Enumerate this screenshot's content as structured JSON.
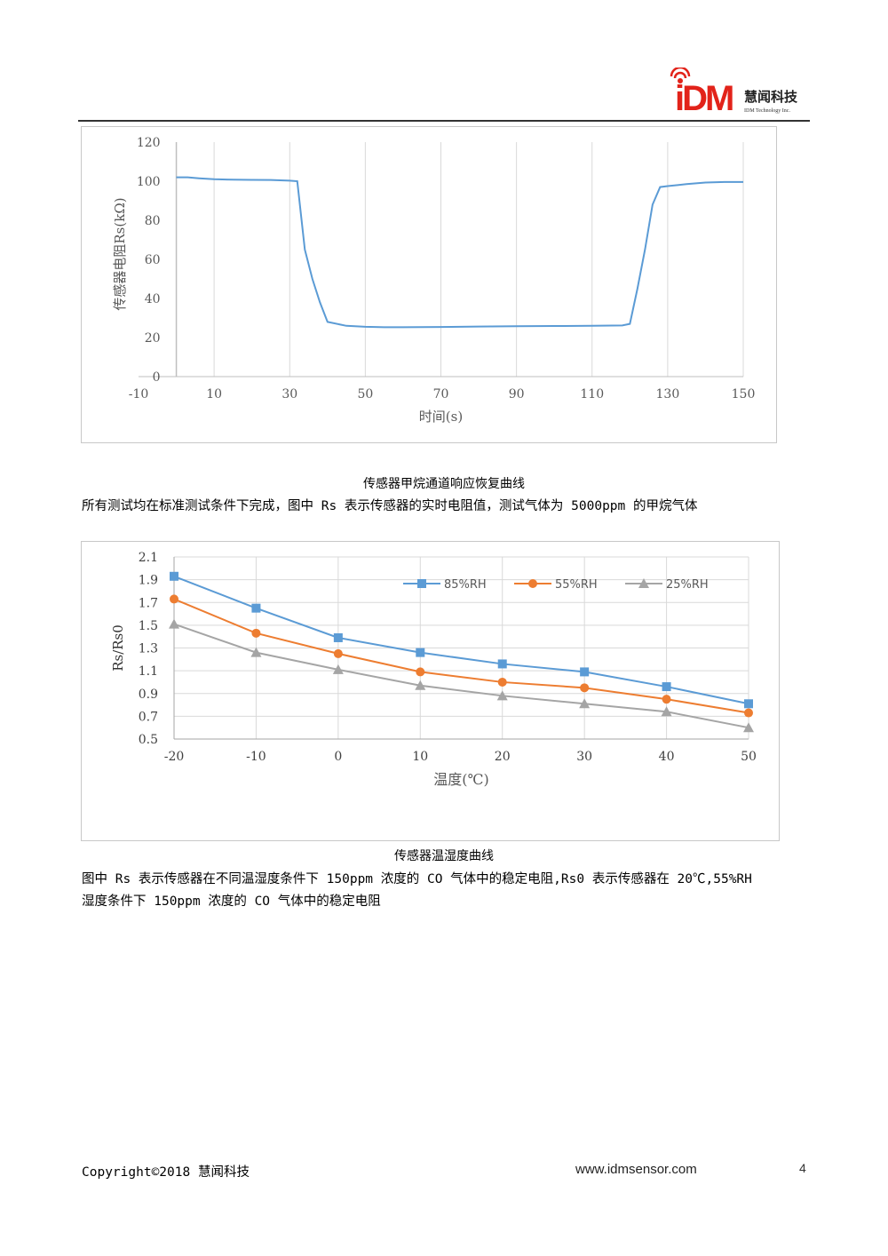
{
  "header": {
    "logo_mark": "iDM",
    "company_cn": "慧闻科技",
    "company_en": "IDM Technology Inc."
  },
  "chart1": {
    "caption": "传感器甲烷通道响应恢复曲线",
    "chart_data": {
      "type": "line",
      "xlabel": "时间(s)",
      "ylabel": "传感器电阻Rs(kΩ)",
      "xlim": [
        -10,
        150
      ],
      "ylim": [
        0,
        120
      ],
      "x_ticks": [
        "-10",
        "10",
        "30",
        "50",
        "70",
        "90",
        "110",
        "130",
        "150"
      ],
      "y_ticks": [
        "0",
        "20",
        "40",
        "60",
        "80",
        "100",
        "120"
      ],
      "grid": "vertical",
      "color": "#5b9bd5",
      "series": [
        {
          "x": [
            0,
            3,
            6,
            10,
            15,
            20,
            25,
            30,
            32,
            34,
            36,
            38,
            40,
            45,
            50,
            55,
            60,
            70,
            80,
            90,
            100,
            110,
            118,
            120,
            122,
            124,
            126,
            128,
            130,
            135,
            140,
            145,
            150
          ],
          "y": [
            102,
            102,
            101.5,
            101,
            100.8,
            100.7,
            100.6,
            100.3,
            100,
            65,
            50,
            38,
            28,
            26,
            25.5,
            25.3,
            25.3,
            25.4,
            25.6,
            25.8,
            25.9,
            26,
            26.2,
            27,
            45,
            65,
            88,
            97,
            97.5,
            98.5,
            99.3,
            99.6,
            99.6
          ]
        }
      ]
    }
  },
  "para1": "所有测试均在标准测试条件下完成，图中 Rs 表示传感器的实时电阻值，测试气体为 5000ppm 的甲烷气体",
  "chart2": {
    "caption": "传感器温湿度曲线",
    "chart_data": {
      "type": "line",
      "xlabel": "温度(℃)",
      "ylabel": "Rs/Rs0",
      "x": [
        -20,
        -10,
        0,
        10,
        20,
        30,
        40,
        50
      ],
      "x_ticks": [
        "-20",
        "-10",
        "0",
        "10",
        "20",
        "30",
        "40",
        "50"
      ],
      "y_ticks": [
        "0.5",
        "0.7",
        "0.9",
        "1.1",
        "1.3",
        "1.5",
        "1.7",
        "1.9",
        "2.1"
      ],
      "xlim": [
        -20,
        50
      ],
      "ylim": [
        0.5,
        2.1
      ],
      "grid": "both",
      "legend": "top-right",
      "series": [
        {
          "name": "85%RH",
          "color": "#5b9bd5",
          "marker": "square",
          "values": [
            1.93,
            1.65,
            1.39,
            1.26,
            1.16,
            1.09,
            0.96,
            0.81
          ]
        },
        {
          "name": "55%RH",
          "color": "#ed7d31",
          "marker": "circle",
          "values": [
            1.73,
            1.43,
            1.25,
            1.09,
            1.0,
            0.95,
            0.85,
            0.73
          ]
        },
        {
          "name": "25%RH",
          "color": "#a5a5a5",
          "marker": "triangle",
          "values": [
            1.51,
            1.26,
            1.11,
            0.97,
            0.88,
            0.81,
            0.74,
            0.6
          ]
        }
      ]
    }
  },
  "para2_line1": "图中 Rs 表示传感器在不同温湿度条件下 150ppm 浓度的 CO 气体中的稳定电阻,Rs0 表示传感器在 20℃,55%RH",
  "para2_line2": "湿度条件下 150ppm 浓度的 CO 气体中的稳定电阻",
  "footer": {
    "copyright": "Copyright©2018 慧闻科技",
    "website": "www.idmsensor.com",
    "page": "4"
  }
}
